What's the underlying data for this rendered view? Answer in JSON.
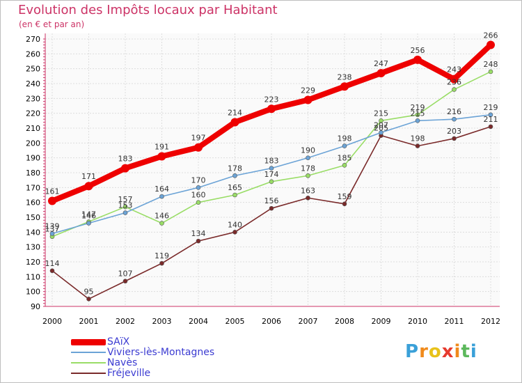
{
  "header": {
    "title": "Evolution des Impôts locaux par Habitant",
    "subtitle": "(en € et par an)"
  },
  "logo": {
    "text": "Proxiti"
  },
  "chart_data": {
    "type": "line",
    "title": "Evolution des Impôts locaux par Habitant",
    "subtitle": "(en € et par an)",
    "xlabel": "",
    "ylabel": "",
    "x": [
      "2000",
      "2001",
      "2002",
      "2003",
      "2004",
      "2005",
      "2006",
      "2007",
      "2008",
      "2009",
      "2010",
      "2011",
      "2012"
    ],
    "ylim": [
      90,
      270
    ],
    "yticks": [
      90,
      100,
      110,
      120,
      130,
      140,
      150,
      160,
      170,
      180,
      190,
      200,
      210,
      220,
      230,
      240,
      250,
      260,
      270
    ],
    "grid": true,
    "legend_position": "bottom-left",
    "series": [
      {
        "name": "SAïX",
        "color": "#ee0000",
        "values": [
          161,
          171,
          183,
          191,
          197,
          214,
          223,
          229,
          238,
          247,
          256,
          243,
          266
        ]
      },
      {
        "name": "Viviers-lès-Montagnes",
        "color": "#6ba3d6",
        "values": [
          139,
          146,
          153,
          164,
          170,
          178,
          183,
          190,
          198,
          207,
          215,
          216,
          219
        ]
      },
      {
        "name": "Navès",
        "color": "#99dd66",
        "values": [
          137,
          147,
          157,
          146,
          160,
          165,
          174,
          178,
          185,
          215,
          219,
          236,
          248
        ]
      },
      {
        "name": "Fréjeville",
        "color": "#7a2a2a",
        "values": [
          114,
          95,
          107,
          119,
          134,
          140,
          156,
          163,
          159,
          205,
          198,
          203,
          211
        ]
      }
    ]
  }
}
